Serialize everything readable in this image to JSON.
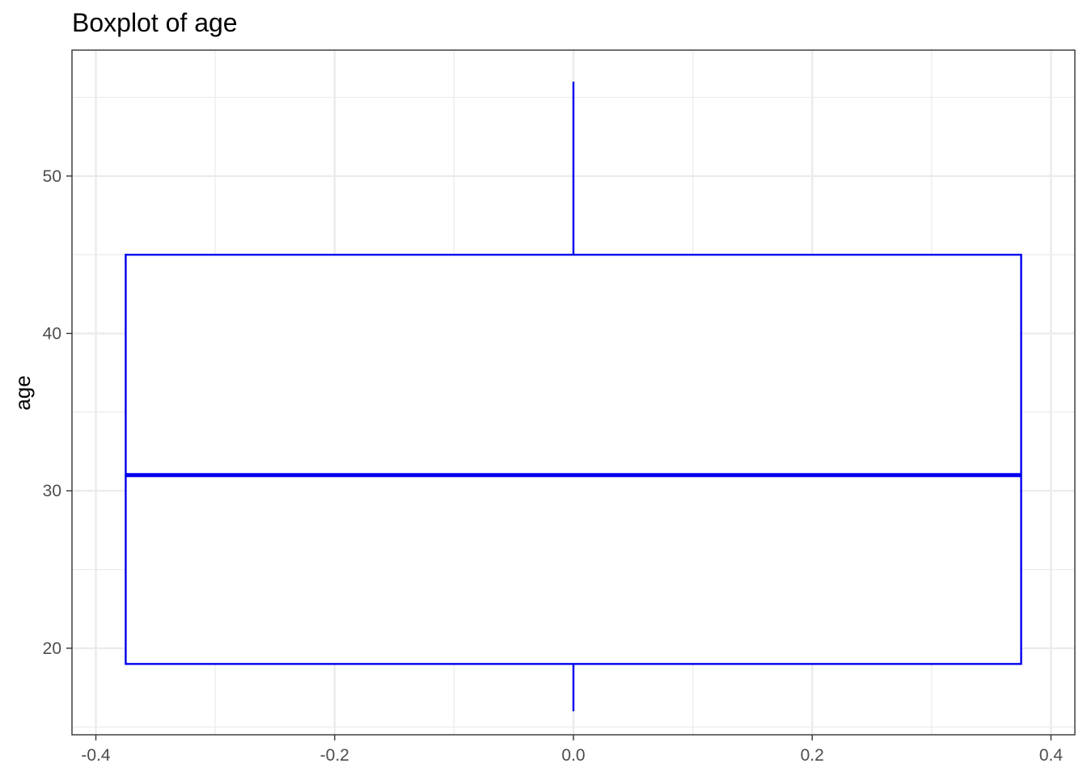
{
  "chart_data": {
    "type": "boxplot",
    "title": "Boxplot of age",
    "xlabel": "",
    "ylabel": "age",
    "xlim": [
      -0.42,
      0.42
    ],
    "ylim": [
      14.5,
      58
    ],
    "x_ticks": [
      -0.4,
      -0.2,
      0.0,
      0.2,
      0.4
    ],
    "x_tick_labels": [
      "-0.4",
      "-0.2",
      "0.0",
      "0.2",
      "0.4"
    ],
    "y_ticks": [
      20,
      30,
      40,
      50
    ],
    "y_tick_labels": [
      "20",
      "30",
      "40",
      "50"
    ],
    "x_minor_ticks": [
      -0.3,
      -0.1,
      0.1,
      0.3
    ],
    "y_minor_ticks": [
      15,
      25,
      35,
      45,
      55
    ],
    "grid": true,
    "box": {
      "x_center": 0.0,
      "x_left": -0.375,
      "x_right": 0.375,
      "whisker_low": 16,
      "q1": 19,
      "median": 31,
      "q3": 45,
      "whisker_high": 56
    },
    "colors": {
      "box_stroke": "#0000ee",
      "grid_major": "#ebebeb",
      "grid_minor": "#ebebeb",
      "panel_border": "#333333",
      "tick_text": "#4d4d4d",
      "title_text": "#000000"
    }
  }
}
